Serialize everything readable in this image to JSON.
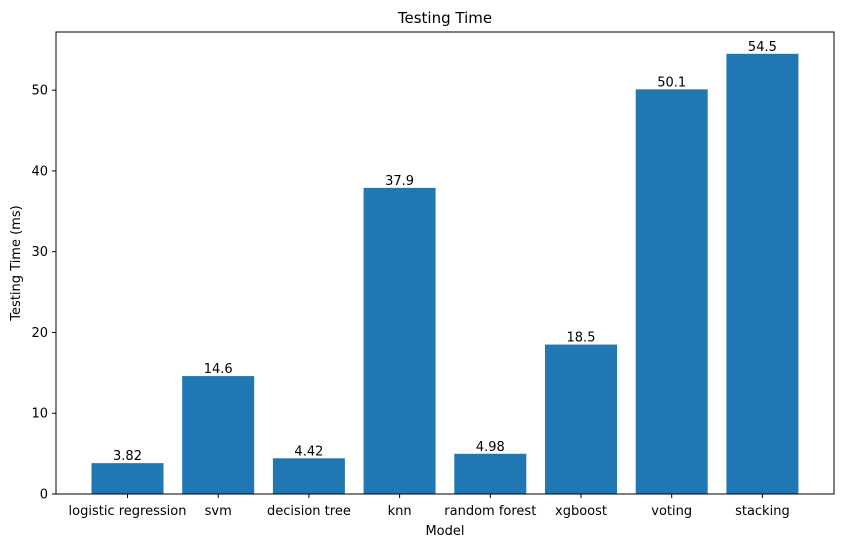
{
  "chart_data": {
    "type": "bar",
    "title": "Testing Time",
    "xlabel": "Model",
    "ylabel": "Testing Time (ms)",
    "categories": [
      "logistic regression",
      "svm",
      "decision tree",
      "knn",
      "random forest",
      "xgboost",
      "voting",
      "stacking"
    ],
    "values": [
      3.82,
      14.6,
      4.42,
      37.9,
      4.98,
      18.5,
      50.1,
      54.5
    ],
    "value_labels": [
      "3.82",
      "14.6",
      "4.42",
      "37.9",
      "4.98",
      "18.5",
      "50.1",
      "54.5"
    ],
    "ylim": [
      0,
      57.2
    ],
    "yticks": [
      0,
      10,
      20,
      30,
      40,
      50
    ],
    "grid": false,
    "legend": "none",
    "bar_color": "#1f77b4"
  }
}
